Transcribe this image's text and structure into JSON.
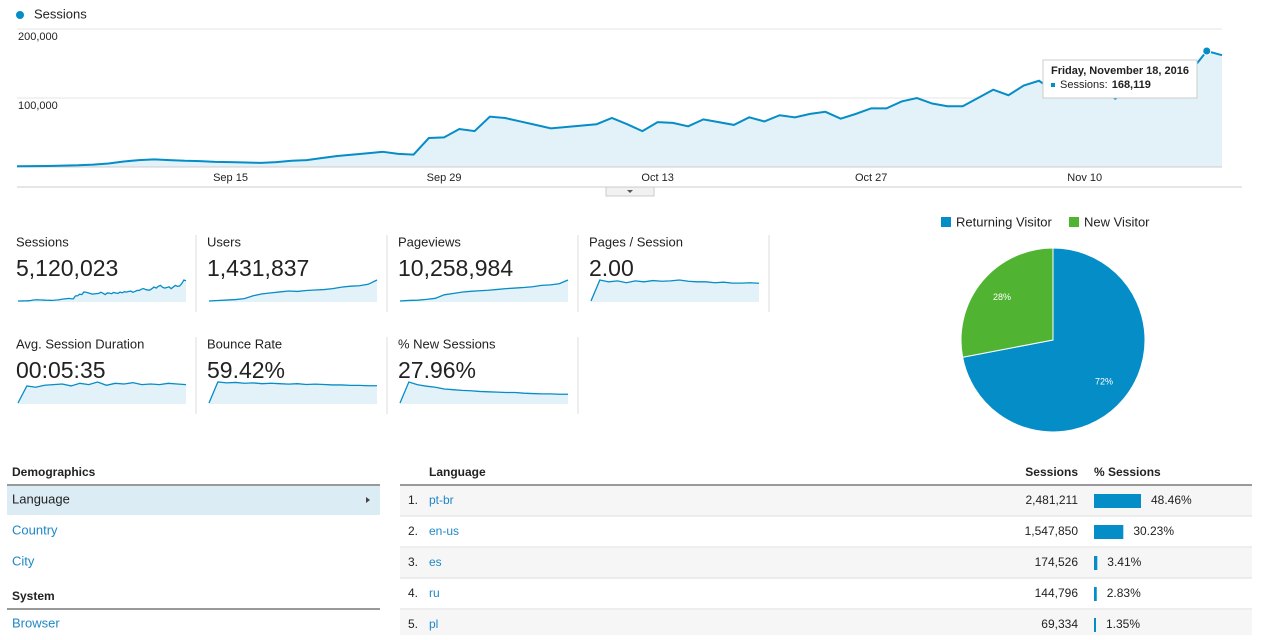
{
  "chart_data": [
    {
      "type": "line",
      "categories": [
        null,
        null,
        null,
        null,
        null,
        null,
        null,
        null,
        null,
        null,
        null,
        null,
        null,
        null,
        "Sep 15",
        null,
        null,
        null,
        null,
        null,
        null,
        null,
        null,
        null,
        null,
        null,
        null,
        null,
        "Sep 29",
        null,
        null,
        null,
        null,
        null,
        null,
        null,
        null,
        null,
        null,
        null,
        null,
        null,
        "Oct 13",
        null,
        null,
        null,
        null,
        null,
        null,
        null,
        null,
        null,
        null,
        null,
        null,
        null,
        "Oct 27",
        null,
        null,
        null,
        null,
        null,
        null,
        null,
        null,
        null,
        null,
        null,
        null,
        null,
        "Nov 10",
        null,
        null,
        null,
        null,
        null,
        null,
        null,
        null,
        null
      ],
      "series": [
        {
          "name": "Sessions",
          "color": "#058dc7",
          "values": [
            1000,
            1200,
            1500,
            2000,
            2500,
            3500,
            5000,
            8000,
            10000,
            11000,
            10000,
            9000,
            8500,
            7500,
            7000,
            6500,
            6000,
            7000,
            9000,
            10000,
            13000,
            16000,
            18000,
            20000,
            22000,
            19000,
            18000,
            42000,
            43000,
            55000,
            52000,
            73000,
            71000,
            66000,
            61000,
            56000,
            58000,
            60000,
            62000,
            71000,
            62000,
            52000,
            65000,
            64000,
            59000,
            69000,
            65000,
            61000,
            72000,
            66000,
            75000,
            72000,
            77000,
            80000,
            70000,
            77000,
            85000,
            85000,
            95000,
            100000,
            92000,
            88000,
            88000,
            100000,
            112000,
            104000,
            118000,
            125000,
            110000,
            104000,
            108000,
            114000,
            99000,
            112000,
            125000,
            118000,
            120000,
            140000,
            168119,
            162000
          ]
        }
      ],
      "ylim": [
        0,
        200000
      ],
      "yticks": [
        {
          "value": 100000,
          "label": "100,000"
        },
        {
          "value": 200000,
          "label": "200,000"
        }
      ],
      "grid": true,
      "tooltip": {
        "title": "Friday, November 18, 2016",
        "label": "Sessions:",
        "value_label": "168,119"
      }
    },
    {
      "type": "pie",
      "categories": [
        "Returning Visitor",
        "New Visitor"
      ],
      "values": [
        72,
        28
      ],
      "value_labels": [
        "72%",
        "28%"
      ],
      "colors": [
        "#058dc7",
        "#50b432"
      ]
    }
  ],
  "scorecards": [
    {
      "label": "Sessions",
      "value": "5,120,023"
    },
    {
      "label": "Users",
      "value": "1,431,837",
      "sparkline": [
        1000,
        2000,
        3000,
        4000,
        6000,
        12000,
        16000,
        18000,
        20000,
        22000,
        21000,
        23000,
        24000,
        25000,
        27000,
        30000,
        32000,
        33000,
        36000,
        45000
      ]
    },
    {
      "label": "Pageviews",
      "value": "10,258,984",
      "sparkline": [
        2000,
        4000,
        5000,
        8000,
        12000,
        25000,
        30000,
        35000,
        38000,
        40000,
        42000,
        45000,
        48000,
        50000,
        52000,
        55000,
        60000,
        62000,
        66000,
        80000
      ]
    },
    {
      "label": "Pages / Session",
      "value": "2.00",
      "sparkline": [
        1.0,
        2.15,
        2.05,
        2.1,
        2.0,
        2.1,
        2.05,
        2.12,
        2.08,
        2.1,
        2.15,
        2.08,
        2.05,
        2.05,
        2.0,
        2.03,
        1.98,
        1.98,
        2.0,
        1.97
      ]
    },
    {
      "label": "Avg. Session Duration",
      "value": "00:05:35",
      "sparkline": [
        200,
        330,
        320,
        335,
        340,
        345,
        330,
        350,
        340,
        360,
        335,
        350,
        345,
        355,
        340,
        345,
        340,
        350,
        345,
        340
      ]
    },
    {
      "label": "Bounce Rate",
      "value": "59.42%",
      "sparkline": [
        20,
        70,
        68,
        69,
        67,
        68,
        66,
        67,
        66,
        65,
        66,
        64,
        65,
        64,
        63,
        63,
        62,
        62,
        61,
        61
      ]
    },
    {
      "label": "% New Sessions",
      "value": "27.96%",
      "sparkline": [
        10,
        70,
        62,
        58,
        55,
        50,
        48,
        46,
        45,
        43,
        42,
        41,
        40,
        40,
        38,
        37,
        36,
        36,
        35,
        35
      ]
    }
  ],
  "navigation": {
    "sections": [
      {
        "title": "Demographics",
        "items": [
          "Language",
          "Country",
          "City"
        ]
      },
      {
        "title": "System",
        "items": [
          "Browser"
        ]
      }
    ]
  },
  "table": {
    "headers": [
      "Language",
      "Sessions",
      "% Sessions"
    ],
    "rows": [
      {
        "rank": "1.",
        "language": "pt-br",
        "sessions": "2,481,211",
        "share": 48.46,
        "share_label": "48.46%"
      },
      {
        "rank": "2.",
        "language": "en-us",
        "sessions": "1,547,850",
        "share": 30.23,
        "share_label": "30.23%"
      },
      {
        "rank": "3.",
        "language": "es",
        "sessions": "174,526",
        "share": 3.41,
        "share_label": "3.41%"
      },
      {
        "rank": "4.",
        "language": "ru",
        "sessions": "144,796",
        "share": 2.83,
        "share_label": "2.83%"
      },
      {
        "rank": "5.",
        "language": "pl",
        "sessions": "69,334",
        "share": 1.35,
        "share_label": "1.35%"
      }
    ]
  }
}
